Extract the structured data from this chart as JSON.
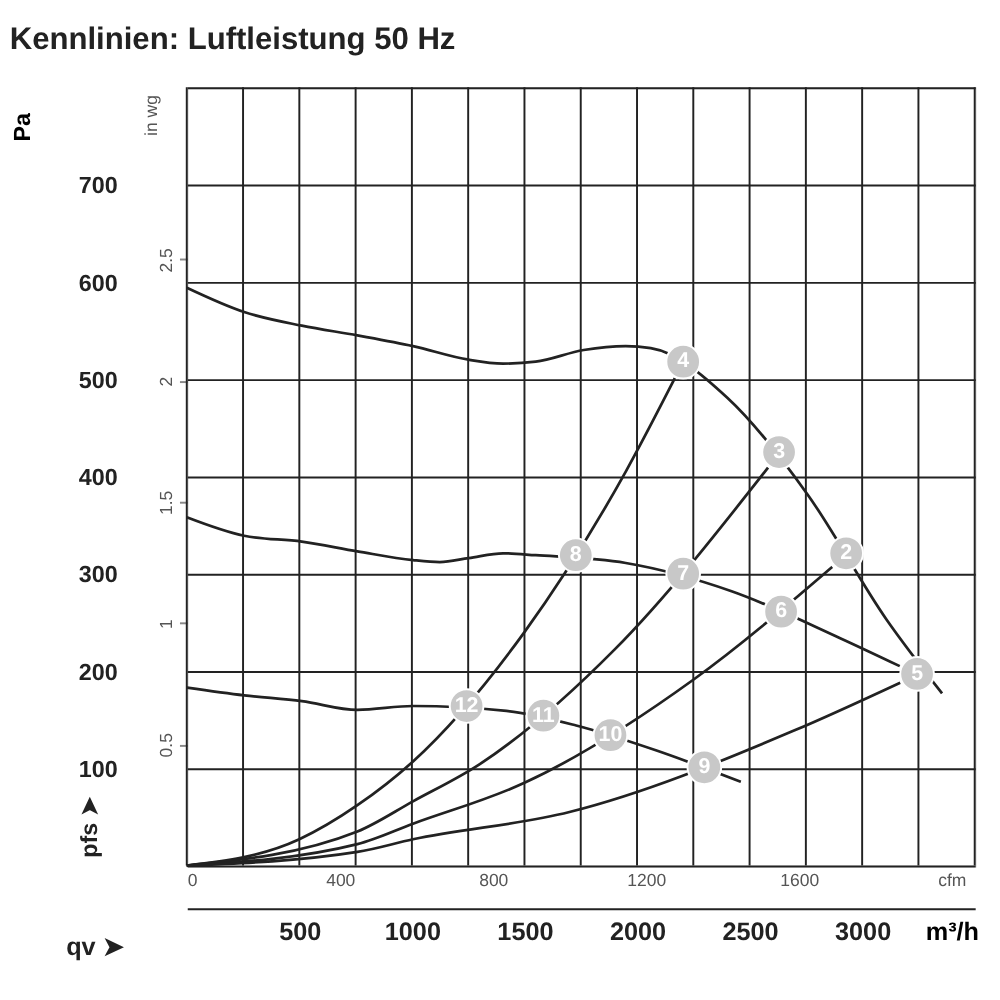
{
  "chart_data": {
    "type": "line",
    "title": "Kennlinien: Luftleistung 50 Hz",
    "xlabel": "m³/h",
    "x2label": "cfm",
    "ylabel": "Pa",
    "y2label": "in wg",
    "annotations": [
      "qv ➤",
      "pfs ➤",
      {
        "text": "2",
        "x": 2929,
        "y": 321
      },
      {
        "text": "3",
        "x": 2631,
        "y": 425
      },
      {
        "text": "4",
        "x": 2205,
        "y": 518
      },
      {
        "text": "5",
        "x": 3244,
        "y": 197
      },
      {
        "text": "6",
        "x": 2640,
        "y": 261
      },
      {
        "text": "7",
        "x": 2205,
        "y": 300
      },
      {
        "text": "8",
        "x": 1728,
        "y": 319
      },
      {
        "text": "9",
        "x": 2299,
        "y": 101
      },
      {
        "text": "10",
        "x": 1882,
        "y": 134
      },
      {
        "text": "11",
        "x": 1584,
        "y": 154
      },
      {
        "text": "12",
        "x": 1243,
        "y": 164
      }
    ],
    "xlim": [
      0,
      3500
    ],
    "xticks": [
      {
        "value": 0,
        "label": null
      },
      {
        "value": 250,
        "label": null
      },
      500,
      {
        "value": 750,
        "label": null
      },
      1000,
      {
        "value": 1250,
        "label": null
      },
      1500,
      {
        "value": 1750,
        "label": null
      },
      2000,
      {
        "value": 2250,
        "label": null
      },
      2500,
      {
        "value": 2750,
        "label": null
      },
      3000,
      {
        "value": 3250,
        "label": null
      },
      {
        "value": 3500,
        "label": null
      }
    ],
    "x2lim": [
      0,
      2060
    ],
    "x2ticks": [
      0,
      400,
      800,
      1200,
      1600
    ],
    "ylim": [
      0,
      800
    ],
    "yticks": [
      {
        "value": 0,
        "label": null
      },
      100,
      200,
      300,
      400,
      500,
      600,
      700,
      {
        "value": 800,
        "label": null
      }
    ],
    "y2lim": [
      0,
      3.21
    ],
    "y2ticks": [
      0.5,
      1,
      1.5,
      2,
      2.5
    ],
    "grid": true,
    "line_style": "solid",
    "series": [
      {
        "color": "#222222",
        "x": [
          0,
          255,
          511,
          758,
          1005,
          1252,
          1405,
          1550,
          1763,
          1950,
          2061,
          2401,
          2759,
          3108,
          3355
        ],
        "values": [
          594,
          569,
          555,
          545,
          534,
          520,
          516,
          518,
          530,
          534,
          532,
          481,
          381,
          253,
          177
        ]
      },
      {
        "color": "#222222",
        "x": [
          0,
          255,
          511,
          758,
          1005,
          1124,
          1252,
          1405,
          1550,
          1950,
          2420,
          2900,
          3167
        ],
        "values": [
          358,
          339,
          333,
          323,
          314,
          312,
          316,
          321,
          319,
          311,
          282,
          234,
          205
        ]
      },
      {
        "color": "#222222",
        "x": [
          0,
          255,
          511,
          758,
          1005,
          1420,
          1730,
          2090,
          2461
        ],
        "values": [
          183,
          175,
          169,
          160,
          164,
          159,
          144,
          118,
          86
        ]
      },
      {
        "color": "#222222",
        "x": [
          0,
          500,
          758,
          1005,
          1500,
          1950,
          2168
        ],
        "values": [
          0,
          27,
          62,
          107,
          240,
          405,
          501
        ]
      },
      {
        "color": "#222222",
        "x": [
          0,
          758,
          1005,
          1300,
          1900,
          2582
        ],
        "values": [
          0,
          35,
          66,
          104,
          222,
          409
        ]
      },
      {
        "color": "#222222",
        "x": [
          0,
          758,
          1005,
          1500,
          2250,
          2867
        ],
        "values": [
          0,
          22,
          43,
          85,
          191,
          307
        ]
      },
      {
        "color": "#222222",
        "x": [
          0,
          758,
          1005,
          1700,
          2700,
          3169
        ],
        "values": [
          0,
          14,
          27,
          55,
          139,
          188
        ]
      },
      {
        "type": "scatter",
        "color": "#c8c8c8",
        "marker": "circle",
        "x": [
          2929,
          2631,
          2205,
          3244,
          2640,
          2205,
          1728,
          2299,
          1882,
          1584,
          1243
        ],
        "values": [
          321,
          425,
          518,
          197,
          261,
          300,
          319,
          101,
          134,
          154,
          164
        ]
      }
    ]
  }
}
